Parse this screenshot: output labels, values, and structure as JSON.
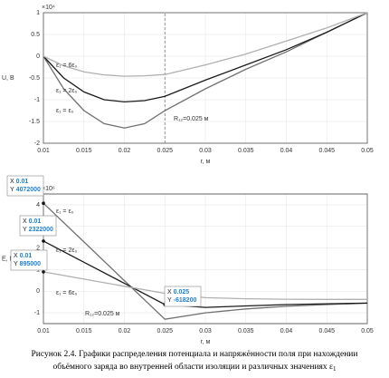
{
  "chart_data": [
    {
      "type": "line",
      "ylabel": "U, В",
      "xlabel": "r, м",
      "exponent": "×10⁴",
      "x": [
        0.01,
        0.0125,
        0.015,
        0.0175,
        0.02,
        0.0225,
        0.025,
        0.03,
        0.035,
        0.04,
        0.045,
        0.05
      ],
      "series": [
        {
          "name": "ε₁ = ε₀",
          "color": "#707070",
          "values": [
            0,
            -0.75,
            -1.25,
            -1.55,
            -1.65,
            -1.55,
            -1.25,
            -0.75,
            -0.3,
            0.1,
            0.55,
            1
          ]
        },
        {
          "name": "ε₁ = 2ε₀",
          "color": "#1a1a1a",
          "values": [
            0,
            -0.5,
            -0.82,
            -1.0,
            -1.05,
            -1.02,
            -0.92,
            -0.55,
            -0.2,
            0.15,
            0.55,
            1
          ]
        },
        {
          "name": "ε₁ = 6ε₀",
          "color": "#b0b0b0",
          "values": [
            0,
            -0.22,
            -0.36,
            -0.43,
            -0.46,
            -0.45,
            -0.42,
            -0.2,
            0.05,
            0.35,
            0.65,
            1
          ]
        }
      ],
      "xlim": [
        0.01,
        0.05
      ],
      "xticks": [
        0.01,
        0.015,
        0.02,
        0.025,
        0.03,
        0.035,
        0.04,
        0.045,
        0.05
      ],
      "ylim": [
        -2,
        1
      ],
      "yticks": [
        -2,
        -1.5,
        -1,
        -0.5,
        0,
        0.5,
        1
      ],
      "grid": true,
      "vline": 0.025,
      "annotation": "R₁₂=0.025 м"
    },
    {
      "type": "line",
      "ylabel": "E, В/м",
      "xlabel": "r, м",
      "exponent": "×10⁶",
      "x": [
        0.01,
        0.015,
        0.02,
        0.025,
        0.03,
        0.035,
        0.04,
        0.045,
        0.05
      ],
      "series": [
        {
          "name": "ε₁ = ε₀",
          "color": "#707070",
          "values": [
            4.072,
            2.28,
            0.49,
            -1.3,
            -1.0,
            -0.82,
            -0.7,
            -0.62,
            -0.55
          ]
        },
        {
          "name": "ε₁ = 2ε₀",
          "color": "#1a1a1a",
          "values": [
            2.322,
            1.342,
            0.362,
            -0.6182,
            -0.75,
            -0.68,
            -0.62,
            -0.58,
            -0.55
          ]
        },
        {
          "name": "ε₁ = 6ε₀",
          "color": "#b0b0b0",
          "values": [
            0.895,
            0.56,
            0.23,
            -0.1,
            -0.3,
            -0.35,
            -0.37,
            -0.38,
            -0.38
          ]
        }
      ],
      "xlim": [
        0.01,
        0.05
      ],
      "xticks": [
        0.01,
        0.015,
        0.02,
        0.025,
        0.03,
        0.035,
        0.04,
        0.045,
        0.05
      ],
      "ylim": [
        -1.5,
        4.5
      ],
      "yticks": [
        -1,
        0,
        1,
        2,
        3,
        4
      ],
      "grid": true,
      "annotation": "R₁₂=0.025 м",
      "datatips": [
        {
          "x_label": "X",
          "x": 0.01,
          "y_label": "Y",
          "y": 4072000
        },
        {
          "x_label": "X",
          "x": 0.01,
          "y_label": "Y",
          "y": 2322000
        },
        {
          "x_label": "X",
          "x": 0.01,
          "y_label": "Y",
          "y": 895000
        },
        {
          "x_label": "X",
          "x": 0.025,
          "y_label": "Y",
          "y": -618200
        }
      ]
    }
  ],
  "caption_lines": [
    "Рисунок 2.4. Графики распределения потенциала и напряжённости поля при нахождении",
    "объёмного заряда во внутренней области изоляции и различных значениях ε"
  ],
  "caption_subscript": "1"
}
